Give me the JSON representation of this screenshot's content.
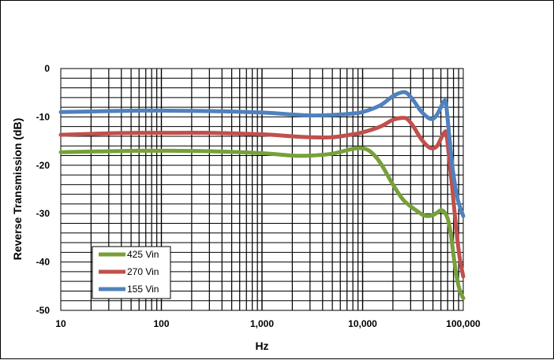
{
  "chart_data": {
    "type": "line",
    "title": "",
    "xlabel": "Hz",
    "ylabel": "Reverse Transmission (dB)",
    "xscale": "log",
    "xlim": [
      10,
      100000
    ],
    "ylim": [
      -50,
      0
    ],
    "grid": true,
    "legend_position": "bottom-left",
    "x_ticks": [
      "10",
      "100",
      "1,000",
      "10,000",
      "100,000"
    ],
    "y_ticks": [
      "0",
      "-10",
      "-20",
      "-30",
      "-40",
      "-50"
    ],
    "series": [
      {
        "name": "425 Vin",
        "color": "#77a03a",
        "points": [
          [
            10,
            -17.3
          ],
          [
            30,
            -17.1
          ],
          [
            60,
            -17.0
          ],
          [
            100,
            -17.0
          ],
          [
            300,
            -17.1
          ],
          [
            1000,
            -17.5
          ],
          [
            2000,
            -18.0
          ],
          [
            3000,
            -18.0
          ],
          [
            5000,
            -17.6
          ],
          [
            8000,
            -16.6
          ],
          [
            10000,
            -16.5
          ],
          [
            12000,
            -17.2
          ],
          [
            15000,
            -19.5
          ],
          [
            20000,
            -24.0
          ],
          [
            25000,
            -27.0
          ],
          [
            30000,
            -28.5
          ],
          [
            35000,
            -29.5
          ],
          [
            40000,
            -30.3
          ],
          [
            45000,
            -30.5
          ],
          [
            50000,
            -30.3
          ],
          [
            55000,
            -29.8
          ],
          [
            60000,
            -29.3
          ],
          [
            65000,
            -29.7
          ],
          [
            70000,
            -31.0
          ],
          [
            75000,
            -34.0
          ],
          [
            80000,
            -38.5
          ],
          [
            85000,
            -42.5
          ],
          [
            90000,
            -45.0
          ],
          [
            95000,
            -46.5
          ],
          [
            100000,
            -47.5
          ]
        ]
      },
      {
        "name": "270 Vin",
        "color": "#c0504d",
        "points": [
          [
            10,
            -13.7
          ],
          [
            30,
            -13.4
          ],
          [
            60,
            -13.3
          ],
          [
            100,
            -13.3
          ],
          [
            300,
            -13.3
          ],
          [
            1000,
            -13.6
          ],
          [
            2000,
            -14.0
          ],
          [
            3000,
            -14.2
          ],
          [
            5000,
            -14.2
          ],
          [
            8000,
            -13.6
          ],
          [
            10000,
            -13.2
          ],
          [
            15000,
            -12.0
          ],
          [
            20000,
            -10.6
          ],
          [
            25000,
            -10.2
          ],
          [
            28000,
            -10.5
          ],
          [
            32000,
            -12.0
          ],
          [
            38000,
            -14.5
          ],
          [
            45000,
            -16.2
          ],
          [
            50000,
            -16.5
          ],
          [
            55000,
            -16.0
          ],
          [
            60000,
            -14.5
          ],
          [
            65000,
            -13.2
          ],
          [
            68000,
            -13.5
          ],
          [
            72000,
            -18.0
          ],
          [
            78000,
            -25.0
          ],
          [
            85000,
            -33.0
          ],
          [
            92000,
            -39.0
          ],
          [
            100000,
            -43.0
          ]
        ]
      },
      {
        "name": "155 Vin",
        "color": "#4f81bd",
        "points": [
          [
            10,
            -9.0
          ],
          [
            30,
            -8.8
          ],
          [
            60,
            -8.7
          ],
          [
            100,
            -8.7
          ],
          [
            300,
            -8.8
          ],
          [
            1000,
            -9.1
          ],
          [
            2000,
            -9.5
          ],
          [
            3000,
            -9.7
          ],
          [
            5000,
            -9.6
          ],
          [
            8000,
            -9.3
          ],
          [
            10000,
            -9.0
          ],
          [
            15000,
            -7.6
          ],
          [
            20000,
            -5.7
          ],
          [
            25000,
            -4.9
          ],
          [
            28000,
            -5.2
          ],
          [
            32000,
            -6.6
          ],
          [
            38000,
            -8.8
          ],
          [
            45000,
            -10.2
          ],
          [
            50000,
            -10.4
          ],
          [
            55000,
            -9.5
          ],
          [
            60000,
            -8.0
          ],
          [
            64000,
            -6.8
          ],
          [
            67000,
            -6.9
          ],
          [
            70000,
            -10.5
          ],
          [
            75000,
            -17.0
          ],
          [
            80000,
            -22.0
          ],
          [
            88000,
            -27.0
          ],
          [
            100000,
            -30.5
          ]
        ]
      }
    ]
  }
}
